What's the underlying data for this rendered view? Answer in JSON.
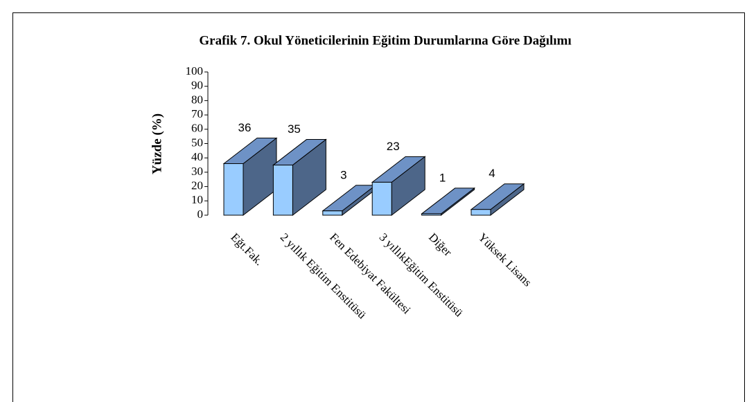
{
  "chart_data": {
    "type": "bar3d",
    "title": "Grafik 7.  Okul Yöneticilerinin Eğitim Durumlarına Göre Dağılımı",
    "ylabel": "Yüzde (%)",
    "categories": [
      "Eğt.Fak.",
      "2 yıllık Eğitim Enstitüsü",
      "Fen Edebiyat Fakültesi",
      "3 yıllıkEğitim Enstitüsü",
      "Diğer",
      "Yüksek Lisans"
    ],
    "values": [
      36,
      35,
      3,
      23,
      1,
      4
    ],
    "color": "#99ccff",
    "side_color": "#4d6689",
    "top_color": "#6e92c6",
    "ylim": [
      0,
      100
    ],
    "yticks": [
      0,
      10,
      20,
      30,
      40,
      50,
      60,
      70,
      80,
      90,
      100
    ]
  }
}
